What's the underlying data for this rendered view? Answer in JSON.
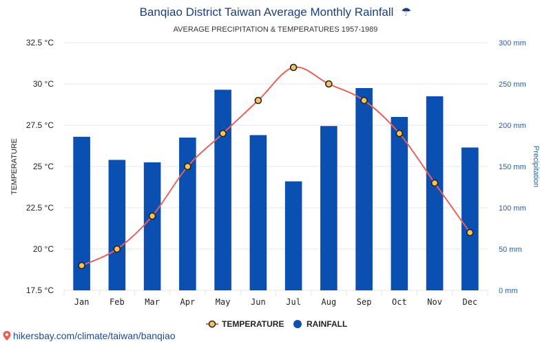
{
  "colors": {
    "bar": "#0b50b0",
    "line": "#e8605a",
    "marker_fill": "#f6c25a",
    "marker_stroke": "#222222",
    "title": "#1f3f79",
    "right_axis": "#1f5fb0"
  },
  "chart_data": {
    "type": "bar",
    "title": "Banqiao District Taiwan Average Monthly Rainfall",
    "title_icon": "☂",
    "subtitle": "AVERAGE PRECIPITATION & TEMPERATURES 1957-1989",
    "categories": [
      "Jan",
      "Feb",
      "Mar",
      "Apr",
      "May",
      "Jun",
      "Jul",
      "Aug",
      "Sep",
      "Oct",
      "Nov",
      "Dec"
    ],
    "series": [
      {
        "name": "RAINFALL",
        "type": "bar",
        "axis": "right",
        "values": [
          186,
          158,
          155,
          185,
          243,
          188,
          132,
          199,
          245,
          210,
          235,
          173
        ]
      },
      {
        "name": "TEMPERATURE",
        "type": "line",
        "axis": "left",
        "values": [
          19,
          20,
          22,
          25,
          27,
          29,
          31,
          30,
          29,
          27,
          24,
          21
        ]
      }
    ],
    "left_axis": {
      "label": "TEMPERATURE",
      "ylim": [
        17.5,
        32.5
      ],
      "ticks": [
        17.5,
        20,
        22.5,
        25,
        27.5,
        30,
        32.5
      ],
      "tick_labels": [
        "17.5 °C",
        "20 °C",
        "22.5 °C",
        "25 °C",
        "27.5 °C",
        "30 °C",
        "32.5 °C"
      ]
    },
    "right_axis": {
      "label": "Precipitation",
      "ylim": [
        0,
        300
      ],
      "ticks": [
        0,
        50,
        100,
        150,
        200,
        250,
        300
      ],
      "tick_labels": [
        "0 mm",
        "50 mm",
        "100 mm",
        "150 mm",
        "200 mm",
        "250 mm",
        "300 mm"
      ]
    },
    "legend": [
      {
        "name": "TEMPERATURE",
        "marker": "line-dot"
      },
      {
        "name": "RAINFALL",
        "marker": "circle"
      }
    ],
    "legend_position": "bottom-center",
    "grid": true
  },
  "source": {
    "icon": "location-pin-icon",
    "text": "hikersbay.com/climate/taiwan/banqiao"
  }
}
